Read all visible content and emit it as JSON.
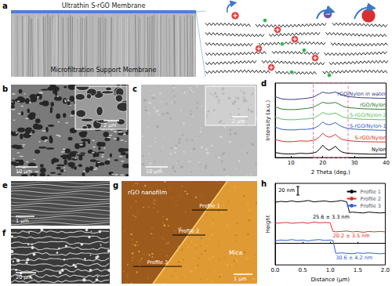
{
  "panels": {
    "a": {
      "letter": "a",
      "top_label": "Ultrathin S-rGO Membrane",
      "bottom_label": "Microfiltration Support Membrane"
    },
    "b": {
      "letter": "b",
      "scale": "10 µm",
      "inset_scale": "2 µm"
    },
    "c": {
      "letter": "c",
      "scale": "10 µm",
      "inset_scale": "2 µm"
    },
    "e": {
      "letter": "e",
      "scale": "1 µm"
    },
    "f": {
      "letter": "f",
      "scale": "20 µm"
    },
    "g": {
      "letter": "g",
      "film_label": "rGO nanofilm",
      "substrate_label": "Mica",
      "profile_labels": [
        "Profile 1",
        "Profile 2",
        "Profile 3"
      ],
      "scale": "1 µm"
    }
  },
  "chart_data": [
    {
      "panel": "d",
      "type": "line",
      "xlabel": "2 Theta (deg.)",
      "ylabel": "Intensity (a.u.)",
      "x": [
        5,
        7,
        9,
        11,
        13,
        15,
        17,
        18,
        19,
        20,
        21,
        22,
        23,
        24,
        25,
        26,
        27,
        28,
        30,
        32,
        35,
        38,
        40
      ],
      "series": [
        {
          "name": "Nylon",
          "color": "#000000",
          "values": [
            0.45,
            0.35,
            0.32,
            0.33,
            0.38,
            0.35,
            0.4,
            0.5,
            0.75,
            1.1,
            0.8,
            0.65,
            0.8,
            1.0,
            0.7,
            0.5,
            0.42,
            0.38,
            0.35,
            0.33,
            0.3,
            0.3,
            0.3
          ]
        },
        {
          "name": "S-rGO/Nylon",
          "color": "#e0302a",
          "values": [
            1.6,
            1.45,
            1.4,
            1.42,
            1.48,
            1.45,
            1.52,
            1.62,
            1.85,
            2.15,
            1.92,
            1.8,
            1.9,
            2.05,
            1.8,
            1.62,
            1.55,
            1.5,
            1.45,
            1.42,
            1.4,
            1.38,
            1.38
          ]
        },
        {
          "name": "S-rGO/Nylon-1",
          "color": "#3060d0",
          "values": [
            2.7,
            2.5,
            2.45,
            2.45,
            2.5,
            2.5,
            2.58,
            2.7,
            2.9,
            3.15,
            2.98,
            2.9,
            2.98,
            3.1,
            2.9,
            2.75,
            2.65,
            2.58,
            2.52,
            2.48,
            2.45,
            2.42,
            2.42
          ]
        },
        {
          "name": "S-rGO/Nylon-2",
          "color": "#5cc15c",
          "values": [
            3.6,
            3.4,
            3.35,
            3.35,
            3.4,
            3.42,
            3.5,
            3.62,
            3.8,
            4.0,
            3.88,
            3.82,
            3.88,
            3.95,
            3.8,
            3.65,
            3.55,
            3.5,
            3.45,
            3.4,
            3.38,
            3.35,
            3.35
          ]
        },
        {
          "name": "rGO/Nylon",
          "color": "#2e7d32",
          "values": [
            4.5,
            4.3,
            4.25,
            4.25,
            4.3,
            4.35,
            4.45,
            4.6,
            4.75,
            4.9,
            4.82,
            4.8,
            4.85,
            4.88,
            4.75,
            4.6,
            4.48,
            4.42,
            4.38,
            4.33,
            4.3,
            4.28,
            4.28
          ]
        },
        {
          "name": "rGO/Nylon in water",
          "color": "#3b3b8f",
          "values": [
            5.4,
            5.2,
            5.15,
            5.15,
            5.2,
            5.25,
            5.35,
            5.5,
            5.65,
            5.8,
            5.72,
            5.7,
            5.75,
            5.8,
            5.68,
            5.55,
            5.45,
            5.4,
            5.35,
            5.3,
            5.28,
            5.25,
            5.25
          ]
        }
      ],
      "xlim": [
        5,
        40
      ],
      "xticks": [
        10,
        20,
        30,
        40
      ],
      "ylim": [
        0,
        6.6
      ],
      "tick_labels": "x",
      "grid": false,
      "highlight_range": [
        17,
        28
      ]
    },
    {
      "panel": "h",
      "type": "line",
      "xlabel": "Distance (µm)",
      "ylabel": "Height",
      "scale_bar": {
        "value": 20,
        "label": "20 nm"
      },
      "series": [
        {
          "name": "Profile 1",
          "color": "#000000",
          "annotation": "25.6 ± 3.3 nm",
          "x": [
            0,
            0.1,
            0.2,
            0.3,
            0.4,
            0.5,
            0.6,
            0.7,
            0.8,
            0.9,
            1.0,
            1.1,
            1.2,
            1.3,
            1.35,
            1.4,
            1.5,
            1.6,
            1.7,
            1.8,
            1.9,
            2.0
          ],
          "values": [
            96,
            98,
            97,
            99,
            97,
            98,
            100,
            97,
            98,
            99,
            97,
            98,
            100,
            97,
            72,
            73,
            72,
            71,
            73,
            72,
            71,
            72
          ]
        },
        {
          "name": "Profile 2",
          "color": "#e0302a",
          "annotation": "20.2 ± 3.5 nm",
          "x": [
            0,
            0.1,
            0.2,
            0.3,
            0.4,
            0.5,
            0.6,
            0.7,
            0.8,
            0.9,
            1.0,
            1.05,
            1.1,
            1.2,
            1.3,
            1.4,
            1.5,
            1.6,
            1.7,
            1.8,
            1.9,
            2.0
          ],
          "values": [
            47,
            48,
            49,
            47,
            48,
            49,
            47,
            50,
            48,
            49,
            48,
            28,
            27,
            28,
            29,
            27,
            28,
            26,
            28,
            27,
            28,
            27
          ]
        },
        {
          "name": "Profile 3",
          "color": "#3060d0",
          "annotation": "30.6 ± 4.2 nm",
          "x": [
            0,
            0.1,
            0.2,
            0.3,
            0.4,
            0.5,
            0.6,
            0.7,
            0.8,
            0.9,
            1.0,
            1.05,
            1.1,
            1.2,
            1.3,
            1.4,
            1.5,
            1.6,
            1.7,
            1.8,
            1.9,
            2.0
          ],
          "values": [
            6,
            8,
            7,
            9,
            7,
            8,
            6,
            8,
            9,
            7,
            8,
            7,
            -23,
            -22,
            -23,
            -24,
            -22,
            -23,
            -22,
            -23,
            -24,
            -23
          ]
        }
      ],
      "xlim": [
        0,
        2.0
      ],
      "xticks": [
        {
          "value": 0,
          "label": "0.0"
        },
        0.5,
        {
          "value": 1,
          "label": "1.0"
        },
        1.5,
        {
          "value": 2,
          "label": "2.0"
        }
      ],
      "ylim": [
        -50,
        140
      ],
      "tick_labels": "x",
      "grid": false,
      "legend": "top-right"
    }
  ]
}
